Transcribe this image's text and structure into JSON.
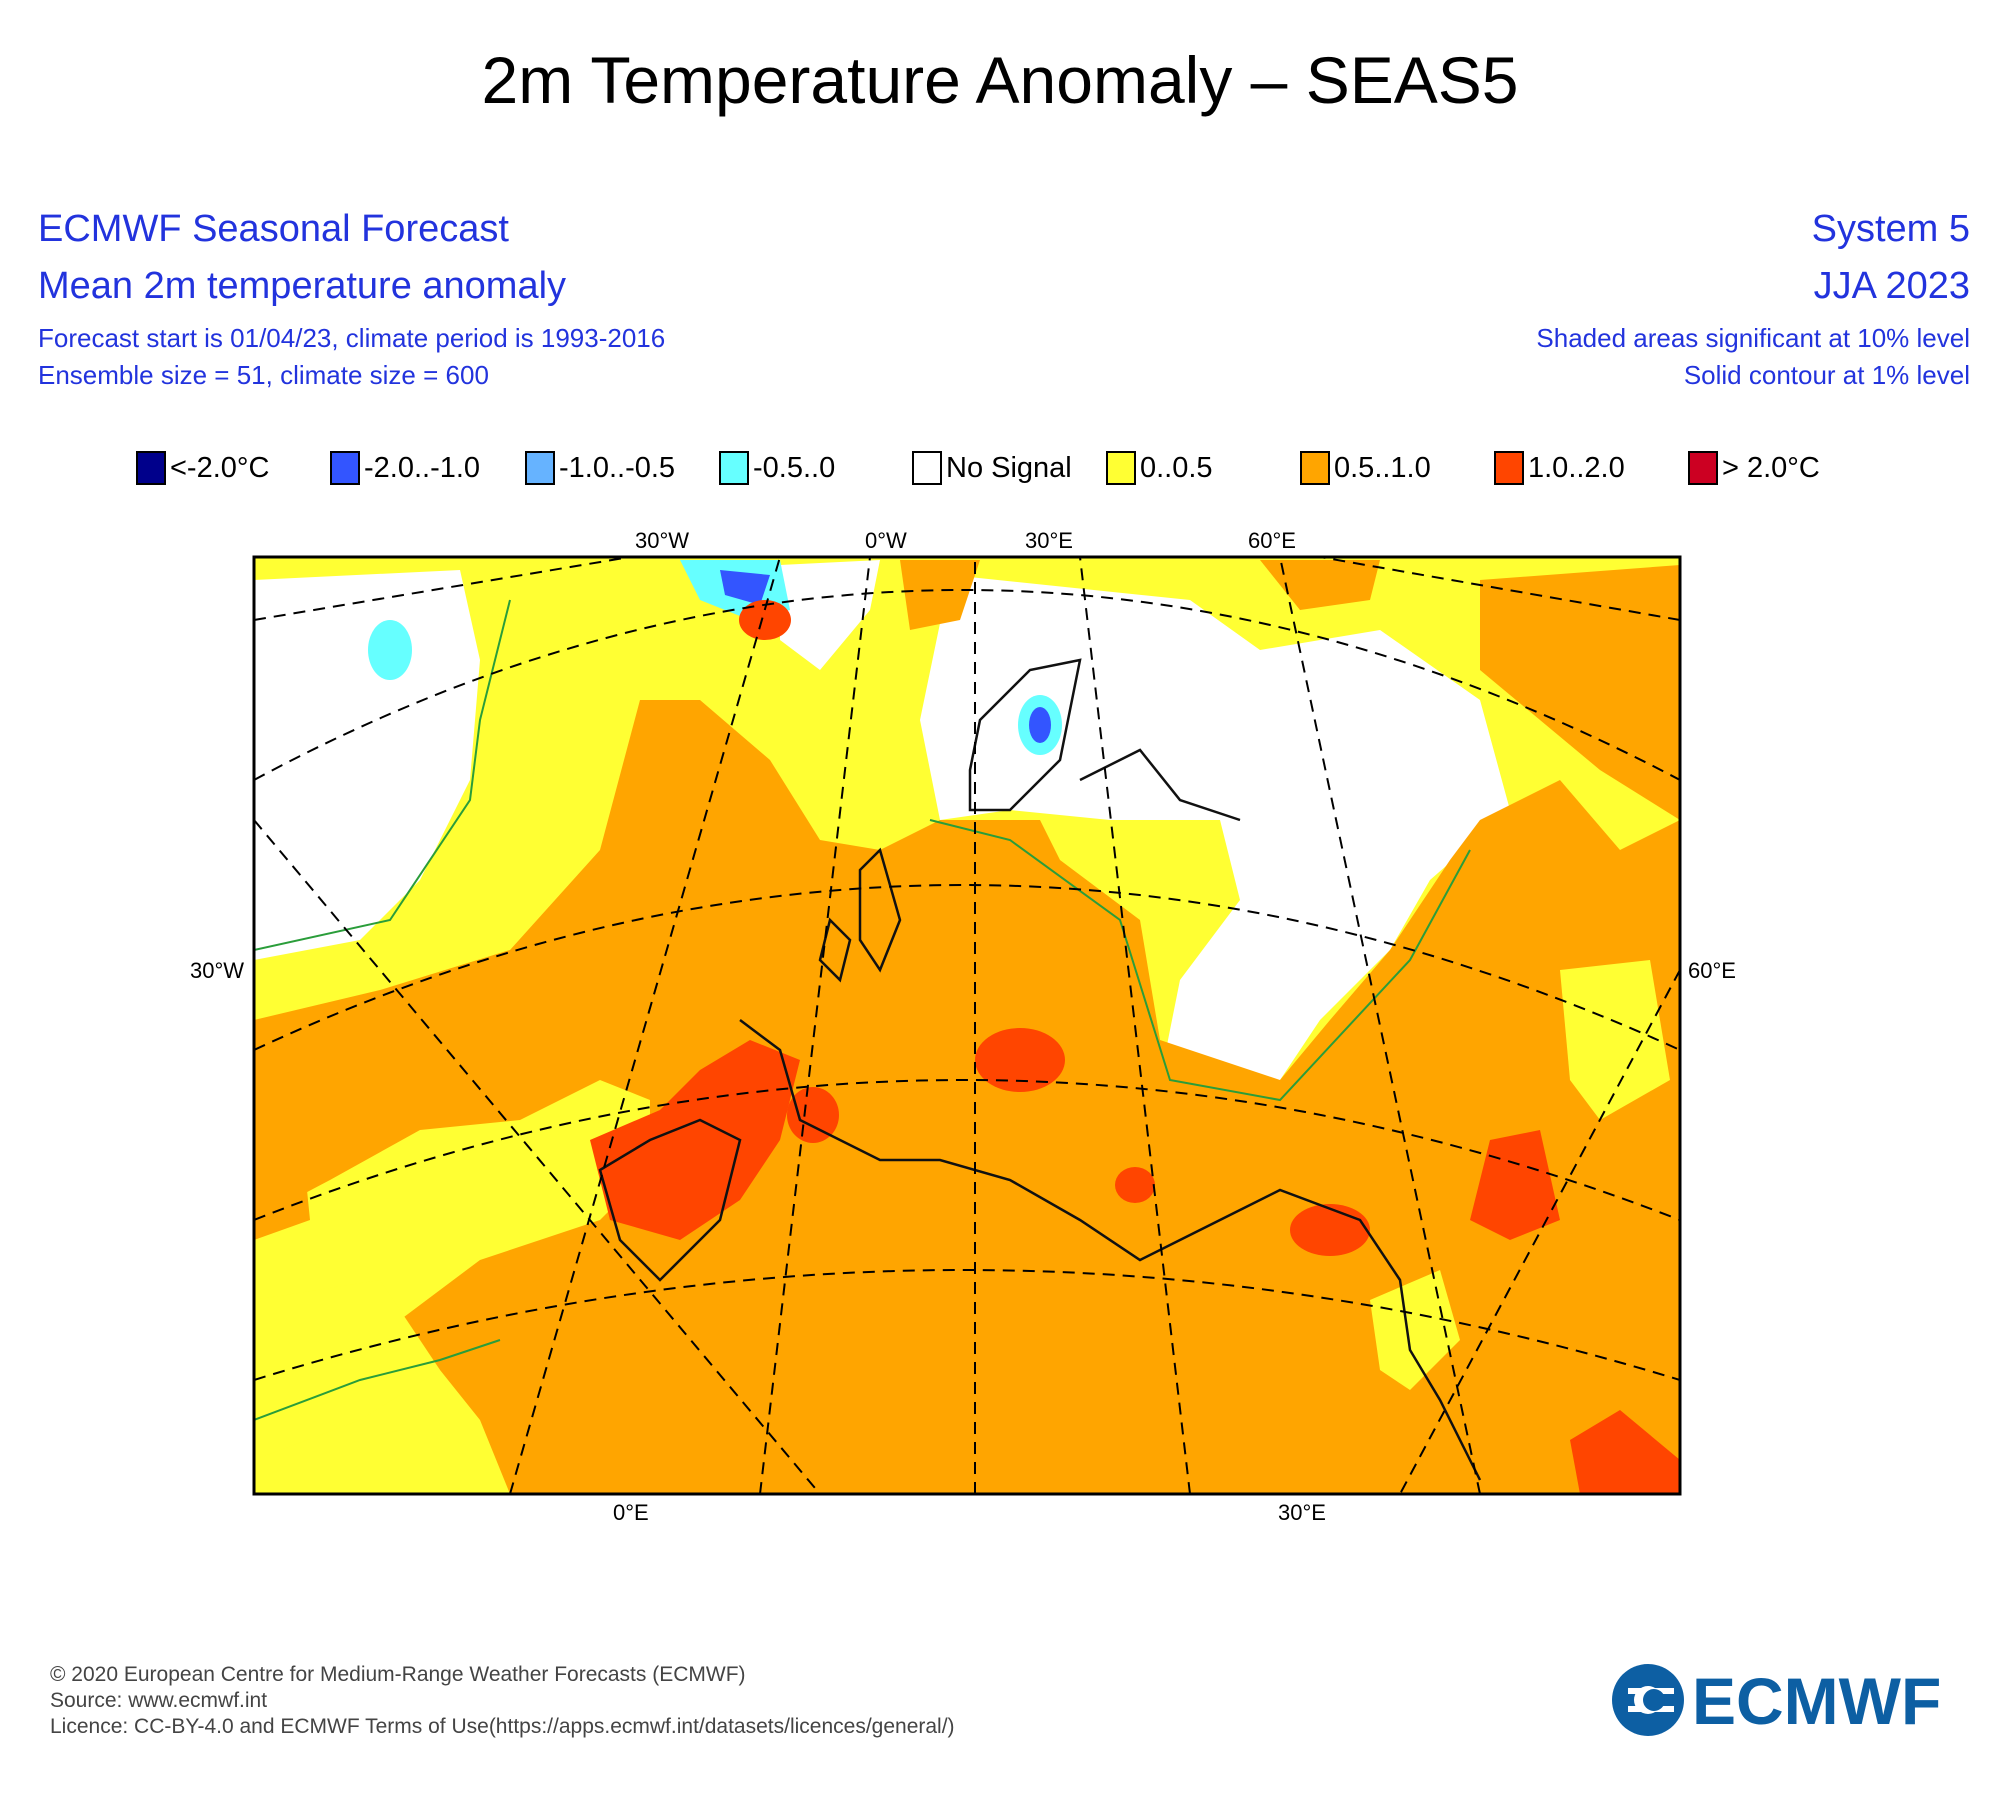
{
  "title": "2m Temperature Anomaly – SEAS5",
  "header": {
    "left": [
      "ECMWF Seasonal Forecast",
      "Mean 2m temperature anomaly",
      "Forecast start is 01/04/23, climate period is 1993-2016",
      "Ensemble size = 51, climate size = 600"
    ],
    "right": [
      "System 5",
      "JJA 2023",
      "Shaded areas significant at 10% level",
      "Solid contour at 1% level"
    ]
  },
  "legend": [
    {
      "label": "<-2.0°C",
      "color": "#00008b"
    },
    {
      "label": "-2.0..-1.0",
      "color": "#3355ff"
    },
    {
      "label": "-1.0..-0.5",
      "color": "#66b3ff"
    },
    {
      "label": "-0.5..0",
      "color": "#66ffff"
    },
    {
      "label": "No Signal",
      "color": "#ffffff"
    },
    {
      "label": "0..0.5",
      "color": "#ffff33"
    },
    {
      "label": "0.5..1.0",
      "color": "#ffa500"
    },
    {
      "label": "1.0..2.0",
      "color": "#ff4500"
    },
    {
      "label": "> 2.0°C",
      "color": "#cc0022"
    }
  ],
  "map_labels": {
    "top": [
      "30°W",
      "0°W",
      "30°E",
      "60°E"
    ],
    "left": "30°W",
    "right": "60°E",
    "bottom": [
      "0°E",
      "30°E"
    ]
  },
  "footer": [
    "© 2020 European Centre for Medium-Range Weather Forecasts (ECMWF)",
    "Source: www.ecmwf.int",
    "Licence: CC-BY-4.0 and ECMWF Terms of Use(https://apps.ecmwf.int/datasets/licences/general/)"
  ],
  "logo_text": "ECMWF",
  "colors": {
    "header_text": "#2233dd",
    "logo": "#0d5fa3",
    "contour": "#2a9d3a"
  }
}
